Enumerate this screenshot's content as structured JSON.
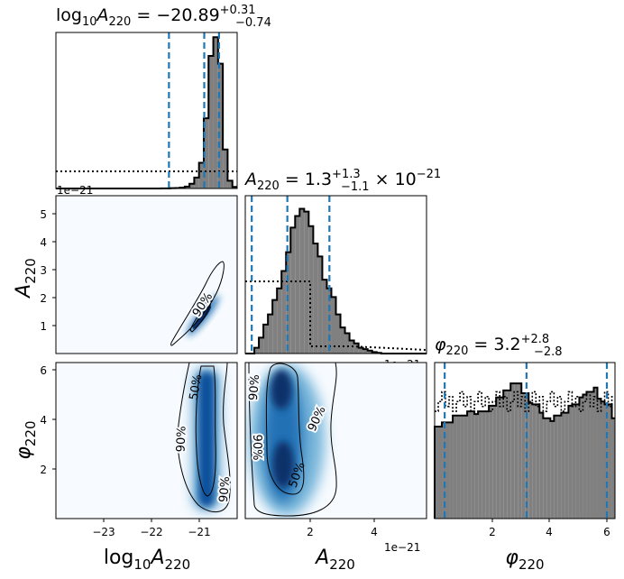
{
  "chart_data": [
    {
      "type": "histogram",
      "panel": "marginal-log10A220",
      "title": "log10A220 = −20.89 +0.31 −0.74",
      "title_parts": {
        "lhs": "log",
        "sub1": "10",
        "var": "A",
        "sub2": "220",
        "eq": " = −20.89",
        "sup": "+0.31",
        "sub": "−0.74"
      },
      "xlim": [
        -24,
        -20.2
      ],
      "quantile_lines": [
        -21.63,
        -20.89,
        -20.58
      ],
      "bin_edges_start": -24.0,
      "bin_width": 0.1,
      "posterior_density": [
        0,
        0,
        0,
        0,
        0,
        0,
        0,
        0,
        0,
        0,
        0,
        0,
        0,
        0,
        0,
        0,
        0,
        0,
        0,
        0,
        0,
        0,
        0.001,
        0.001,
        0.002,
        0.003,
        0.006,
        0.012,
        0.03,
        0.07,
        0.165,
        0.45,
        0.85,
        0.97,
        0.8,
        0.25,
        0.05,
        0.01
      ],
      "prior_density": 0.1,
      "offset_text": "1e−21"
    },
    {
      "type": "histogram",
      "panel": "marginal-A220",
      "title": "A220 = 1.3 +1.3 −1.1 × 10^−21",
      "title_parts": {
        "var": "A",
        "sub2": "220",
        "eq": " = 1.3",
        "sup": "+1.3",
        "sub": "−1.1",
        "tail": " × 10",
        "exp": "−21"
      },
      "xlim": [
        0,
        5.6
      ],
      "quantile_lines": [
        0.2,
        1.3,
        2.6
      ],
      "bin_edges_start": 0.0,
      "bin_width": 0.14,
      "posterior_density": [
        0,
        0,
        0.04,
        0.11,
        0.2,
        0.27,
        0.37,
        0.45,
        0.57,
        0.7,
        0.87,
        0.95,
        1.0,
        0.98,
        0.88,
        0.76,
        0.67,
        0.51,
        0.45,
        0.39,
        0.27,
        0.18,
        0.14,
        0.09,
        0.07,
        0.04,
        0.03,
        0.02,
        0.01,
        0.005,
        0,
        0,
        0,
        0,
        0,
        0,
        0,
        0,
        0,
        0
      ],
      "prior_density": 0.49,
      "prior_cutoff": 2.0,
      "offset_text": "1e−21",
      "xticks": [
        2,
        4
      ],
      "xlabel": "A220",
      "yticks": [
        1,
        2,
        3,
        4,
        5
      ],
      "ylabel": "A220"
    },
    {
      "type": "histogram",
      "panel": "marginal-phi220",
      "title": "φ220 = 3.2 +2.8 −2.8",
      "title_parts": {
        "var": "φ",
        "sub2": "220",
        "eq": " = 3.2",
        "sup": "+2.8",
        "sub": "−2.8"
      },
      "xlim": [
        0,
        6.283
      ],
      "quantile_lines": [
        0.35,
        3.2,
        6.0
      ],
      "bin_width": 0.126,
      "posterior_density": [
        0.66,
        0.66,
        0.69,
        0.69,
        0.69,
        0.74,
        0.74,
        0.74,
        0.74,
        0.77,
        0.77,
        0.75,
        0.77,
        0.77,
        0.77,
        0.81,
        0.81,
        0.87,
        0.87,
        0.92,
        0.92,
        0.97,
        0.97,
        0.97,
        0.9,
        0.9,
        0.83,
        0.82,
        0.82,
        0.76,
        0.72,
        0.72,
        0.7,
        0.74,
        0.74,
        0.76,
        0.76,
        0.81,
        0.82,
        0.82,
        0.87,
        0.89,
        0.91,
        0.91,
        0.94,
        0.86,
        0.84,
        0.82,
        0.82,
        0.72
      ],
      "prior_density": 0.84,
      "xticks": [
        2,
        4,
        6
      ],
      "xlabel": "φ220"
    },
    {
      "type": "contour",
      "panel": "2d-log10A220-A220",
      "xlim": [
        -24,
        -20.2
      ],
      "ylim": [
        0,
        5.6
      ],
      "contour_labels": [
        "90%"
      ],
      "xticks": [
        -23,
        -22,
        -21
      ],
      "xlabel": "log10A220",
      "yticks": [
        1,
        2,
        3,
        4,
        5
      ],
      "ylabel": "A220"
    },
    {
      "type": "contour",
      "panel": "2d-log10A220-phi220",
      "xlim": [
        -24,
        -20.2
      ],
      "ylim": [
        0,
        6.283
      ],
      "contour_labels": [
        "50%",
        "90%",
        "90%"
      ],
      "xticks": [
        -23,
        -22,
        -21
      ],
      "xlabel": "log10A220",
      "yticks": [
        2,
        4,
        6
      ],
      "ylabel": "φ220"
    },
    {
      "type": "contour",
      "panel": "2d-A220-phi220",
      "xlim": [
        0,
        5.6
      ],
      "ylim": [
        0,
        6.283
      ],
      "contour_labels": [
        "90%",
        "90%",
        "90%",
        "50%"
      ],
      "xticks": [
        2,
        4
      ],
      "xlabel": "A220",
      "offset_text": "1e−21",
      "yticks": [
        2,
        4,
        6
      ],
      "ylabel": "φ220"
    }
  ],
  "labels": {
    "log": "log",
    "ten": "10",
    "A": "A",
    "phi": "φ",
    "sub220": "220",
    "offset": "1e−21",
    "p90": "90%",
    "p50": "50%",
    "tick_m23": "−23",
    "tick_m22": "−22",
    "tick_m21": "−21",
    "tick_1": "1",
    "tick_2": "2",
    "tick_3": "3",
    "tick_4": "4",
    "tick_5": "5",
    "tick_6": "6"
  },
  "colors": {
    "hist_fill": "#808080",
    "quantile": "#1f77b4",
    "density_low": "#f7fbff",
    "density_high": "#08306b",
    "contour": "#000000"
  }
}
